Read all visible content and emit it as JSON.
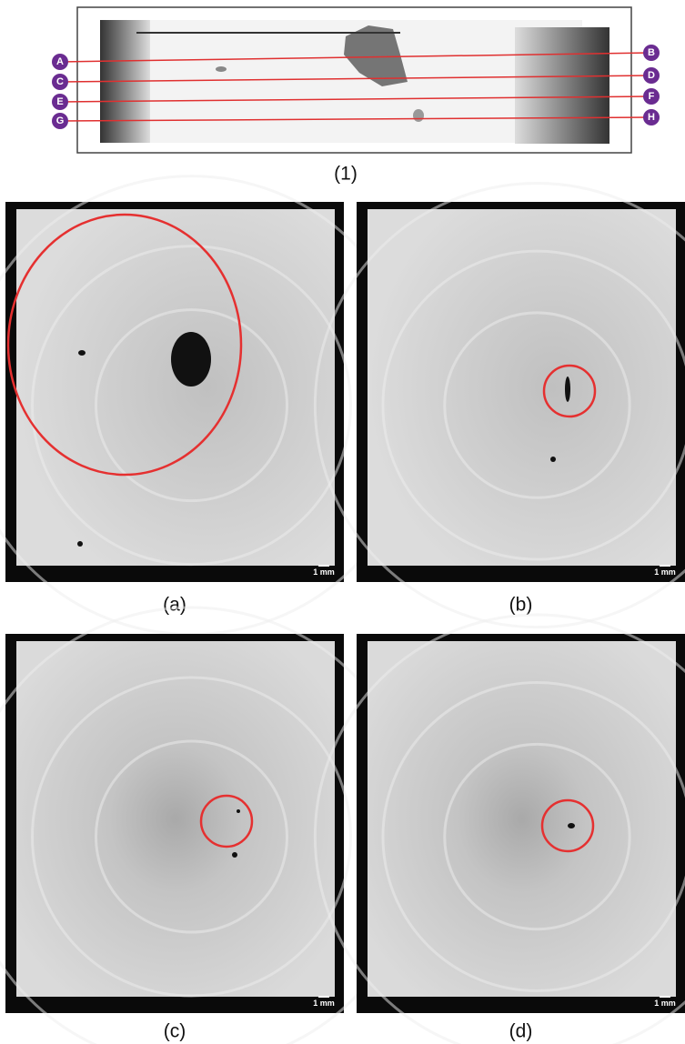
{
  "overview": {
    "caption": "(1)",
    "markers": [
      "A",
      "B",
      "C",
      "D",
      "E",
      "F",
      "G",
      "H"
    ]
  },
  "panels": [
    {
      "caption": "(a)",
      "scale": "1 mm"
    },
    {
      "caption": "(b)",
      "scale": "1 mm"
    },
    {
      "caption": "(c)",
      "scale": "1 mm"
    },
    {
      "caption": "(d)",
      "scale": "1 mm"
    }
  ]
}
